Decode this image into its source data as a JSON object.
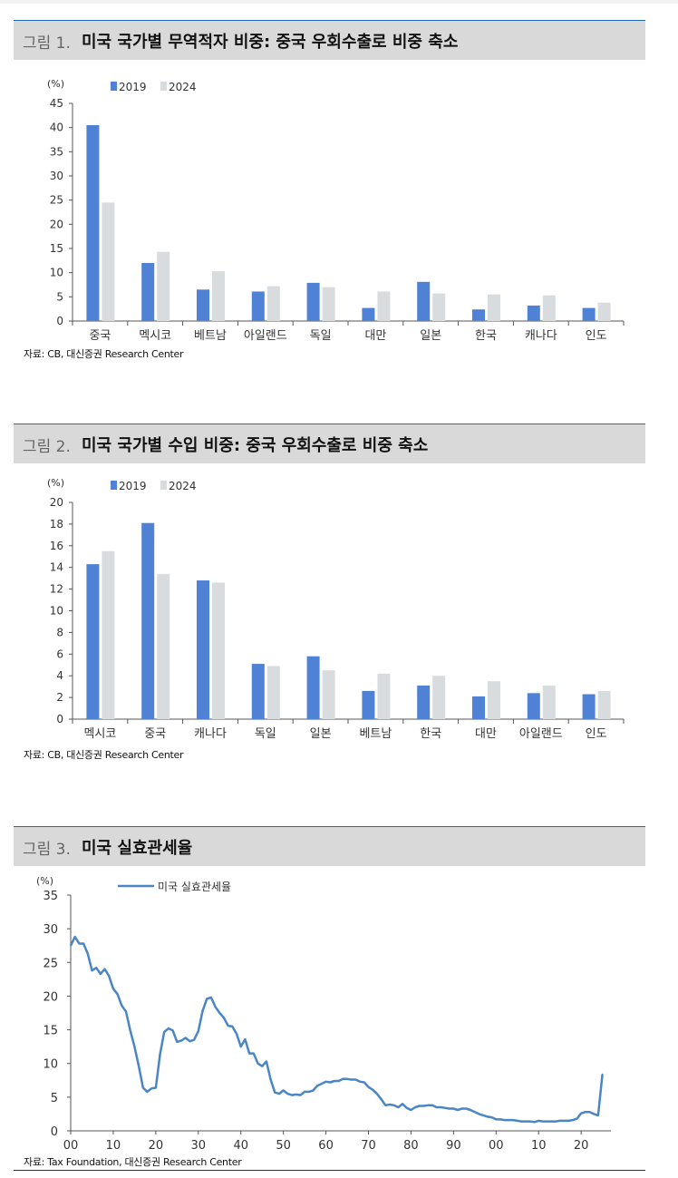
{
  "figures": [
    {
      "number": "그림 1.",
      "title": "미국 국가별 무역적자 비중: 중국 우회수출로 비중 축소",
      "source": "자료: CB, 대신증권 Research Center",
      "chart_data": {
        "type": "bar",
        "yunit": "(%)",
        "ylim": [
          0,
          45
        ],
        "yticks": [
          0,
          5,
          10,
          15,
          20,
          25,
          30,
          35,
          40,
          45
        ],
        "categories": [
          "중국",
          "멕시코",
          "베트남",
          "아일랜드",
          "독일",
          "대만",
          "일본",
          "한국",
          "캐나다",
          "인도"
        ],
        "series": [
          {
            "name": "2019",
            "color": "#4f81d4",
            "values": [
              40.5,
              12.0,
              6.5,
              6.1,
              7.9,
              2.7,
              8.1,
              2.4,
              3.2,
              2.7
            ]
          },
          {
            "name": "2024",
            "color": "#d9dcdf",
            "values": [
              24.5,
              14.3,
              10.3,
              7.2,
              7.0,
              6.1,
              5.7,
              5.5,
              5.3,
              3.8
            ]
          }
        ],
        "legend": "top-left"
      }
    },
    {
      "number": "그림 2.",
      "title": "미국 국가별 수입 비중: 중국 우회수출로 비중 축소",
      "source": "자료: CB, 대신증권 Research Center",
      "chart_data": {
        "type": "bar",
        "yunit": "(%)",
        "ylim": [
          0,
          20
        ],
        "yticks": [
          0,
          2,
          4,
          6,
          8,
          10,
          12,
          14,
          16,
          18,
          20
        ],
        "categories": [
          "멕시코",
          "중국",
          "캐나다",
          "독일",
          "일본",
          "베트남",
          "한국",
          "대만",
          "아일랜드",
          "인도"
        ],
        "series": [
          {
            "name": "2019",
            "color": "#4f81d4",
            "values": [
              14.3,
              18.1,
              12.8,
              5.1,
              5.8,
              2.6,
              3.1,
              2.1,
              2.4,
              2.3
            ]
          },
          {
            "name": "2024",
            "color": "#d9dcdf",
            "values": [
              15.5,
              13.4,
              12.6,
              4.9,
              4.5,
              4.2,
              4.0,
              3.5,
              3.1,
              2.6
            ]
          }
        ],
        "legend": "top-left"
      }
    },
    {
      "number": "그림 3.",
      "title": "미국 실효관세율",
      "source": "자료: Tax Foundation, 대신증권 Research Center",
      "chart_data": {
        "type": "line",
        "yunit": "(%)",
        "ylim": [
          0,
          35
        ],
        "yticks": [
          0,
          5,
          10,
          15,
          20,
          25,
          30,
          35
        ],
        "xlim": [
          1900,
          2027
        ],
        "xticks": [
          1900,
          1910,
          1920,
          1930,
          1940,
          1950,
          1960,
          1970,
          1980,
          1990,
          2000,
          2010,
          2020
        ],
        "xticklabels": [
          "00",
          "10",
          "20",
          "30",
          "40",
          "50",
          "60",
          "70",
          "80",
          "90",
          "00",
          "10",
          "20"
        ],
        "series": [
          {
            "name": "미국 실효관세율",
            "color": "#4a86c5",
            "x": [
              1900,
              1901,
              1902,
              1903,
              1904,
              1905,
              1906,
              1907,
              1908,
              1909,
              1910,
              1911,
              1912,
              1913,
              1914,
              1915,
              1916,
              1917,
              1918,
              1919,
              1920,
              1921,
              1922,
              1923,
              1924,
              1925,
              1926,
              1927,
              1928,
              1929,
              1930,
              1931,
              1932,
              1933,
              1934,
              1935,
              1936,
              1937,
              1938,
              1939,
              1940,
              1941,
              1942,
              1943,
              1944,
              1945,
              1946,
              1947,
              1948,
              1949,
              1950,
              1951,
              1952,
              1953,
              1954,
              1955,
              1956,
              1957,
              1958,
              1959,
              1960,
              1961,
              1962,
              1963,
              1964,
              1965,
              1966,
              1967,
              1968,
              1969,
              1970,
              1971,
              1972,
              1973,
              1974,
              1975,
              1976,
              1977,
              1978,
              1979,
              1980,
              1981,
              1982,
              1983,
              1984,
              1985,
              1986,
              1987,
              1988,
              1989,
              1990,
              1991,
              1992,
              1993,
              1994,
              1995,
              1996,
              1997,
              1998,
              1999,
              2000,
              2001,
              2002,
              2003,
              2004,
              2005,
              2006,
              2007,
              2008,
              2009,
              2010,
              2011,
              2012,
              2013,
              2014,
              2015,
              2016,
              2017,
              2018,
              2019,
              2020,
              2021,
              2022,
              2023,
              2024,
              2025
            ],
            "y": [
              27.5,
              28.8,
              27.8,
              27.8,
              26.3,
              23.8,
              24.2,
              23.3,
              24.0,
              23.0,
              21.1,
              20.3,
              18.6,
              17.7,
              14.9,
              12.5,
              9.6,
              6.4,
              5.8,
              6.3,
              6.4,
              11.4,
              14.7,
              15.2,
              14.9,
              13.2,
              13.4,
              13.8,
              13.3,
              13.5,
              14.8,
              17.8,
              19.6,
              19.8,
              18.4,
              17.5,
              16.8,
              15.6,
              15.5,
              14.4,
              12.5,
              13.6,
              11.5,
              11.5,
              10.0,
              9.6,
              10.3,
              7.6,
              5.7,
              5.5,
              6.0,
              5.5,
              5.3,
              5.4,
              5.3,
              5.8,
              5.8,
              6.0,
              6.7,
              7.0,
              7.3,
              7.2,
              7.4,
              7.4,
              7.7,
              7.7,
              7.6,
              7.6,
              7.3,
              7.2,
              6.5,
              6.1,
              5.5,
              4.7,
              3.8,
              3.9,
              3.8,
              3.5,
              4.0,
              3.4,
              3.1,
              3.5,
              3.7,
              3.7,
              3.8,
              3.8,
              3.5,
              3.5,
              3.4,
              3.3,
              3.3,
              3.1,
              3.3,
              3.3,
              3.1,
              2.8,
              2.5,
              2.3,
              2.1,
              2.0,
              1.7,
              1.7,
              1.6,
              1.6,
              1.6,
              1.5,
              1.4,
              1.4,
              1.4,
              1.3,
              1.5,
              1.4,
              1.4,
              1.4,
              1.4,
              1.5,
              1.5,
              1.5,
              1.6,
              1.8,
              2.6,
              2.8,
              2.8,
              2.5,
              2.3,
              8.4
            ]
          }
        ],
        "legend": "top-left"
      }
    }
  ]
}
